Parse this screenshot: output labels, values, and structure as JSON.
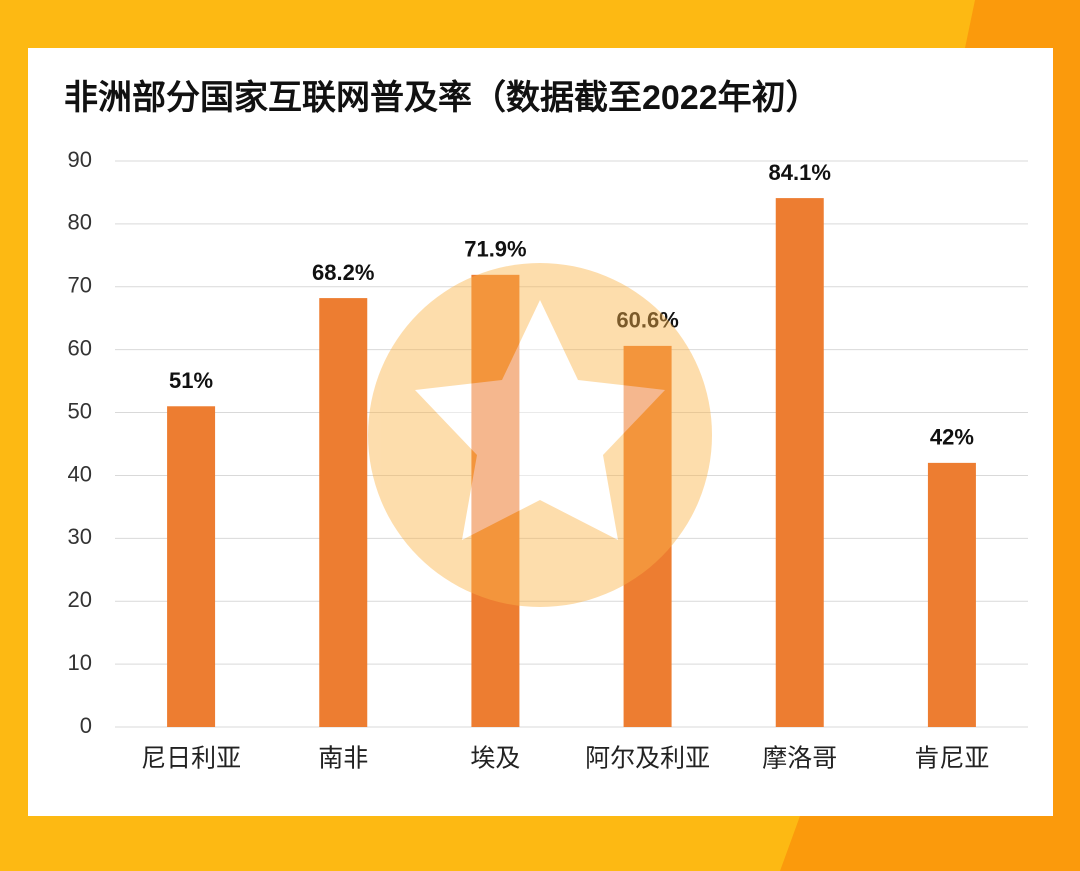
{
  "chart_data": {
    "type": "bar",
    "title": "非洲部分国家互联网普及率（数据截至2022年初）",
    "categories": [
      "尼日利亚",
      "南非",
      "埃及",
      "阿尔及利亚",
      "摩洛哥",
      "肯尼亚"
    ],
    "values": [
      51,
      68.2,
      71.9,
      60.6,
      84.1,
      42
    ],
    "value_labels": [
      "51%",
      "68.2%",
      "71.9%",
      "60.6%",
      "84.1%",
      "42%"
    ],
    "color": "#ed7d31",
    "ylim": [
      0,
      90
    ],
    "yticks": [
      0,
      10,
      20,
      30,
      40,
      50,
      60,
      70,
      80,
      90
    ],
    "grid": true
  }
}
